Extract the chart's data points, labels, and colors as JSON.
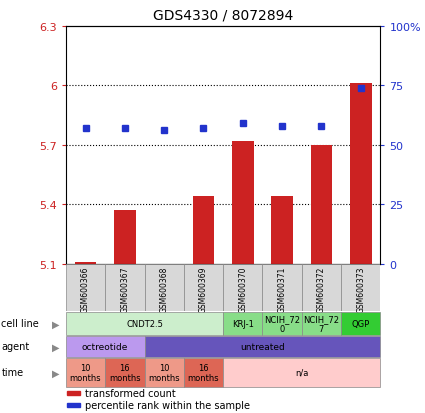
{
  "title": "GDS4330 / 8072894",
  "samples": [
    "GSM600366",
    "GSM600367",
    "GSM600368",
    "GSM600369",
    "GSM600370",
    "GSM600371",
    "GSM600372",
    "GSM600373"
  ],
  "bar_values": [
    5.11,
    5.37,
    5.05,
    5.44,
    5.72,
    5.44,
    5.7,
    6.01
  ],
  "bar_base": 5.1,
  "dot_values": [
    57,
    57,
    56,
    57,
    59,
    58,
    58,
    74
  ],
  "ylim_left": [
    5.1,
    6.3
  ],
  "ylim_right": [
    0,
    100
  ],
  "yticks_left": [
    5.1,
    5.4,
    5.7,
    6.0,
    6.3
  ],
  "ytick_labels_left": [
    "5.1",
    "5.4",
    "5.7",
    "6",
    "6.3"
  ],
  "yticks_right": [
    0,
    25,
    50,
    75,
    100
  ],
  "hlines": [
    5.4,
    5.7,
    6.0
  ],
  "bar_color": "#cc2222",
  "dot_color": "#2233cc",
  "bg_color": "#ffffff",
  "cell_line_groups": [
    {
      "label": "CNDT2.5",
      "start": 0,
      "end": 4,
      "color": "#cceecc"
    },
    {
      "label": "KRJ-1",
      "start": 4,
      "end": 5,
      "color": "#88dd88"
    },
    {
      "label": "NCIH_72\n0",
      "start": 5,
      "end": 6,
      "color": "#88dd88"
    },
    {
      "label": "NCIH_72\n7",
      "start": 6,
      "end": 7,
      "color": "#88dd88"
    },
    {
      "label": "QGP",
      "start": 7,
      "end": 8,
      "color": "#33cc33"
    }
  ],
  "agent_groups": [
    {
      "label": "octreotide",
      "start": 0,
      "end": 2,
      "color": "#bb99ee"
    },
    {
      "label": "untreated",
      "start": 2,
      "end": 8,
      "color": "#6655bb"
    }
  ],
  "time_groups": [
    {
      "label": "10\nmonths",
      "start": 0,
      "end": 1,
      "color": "#ee9988"
    },
    {
      "label": "16\nmonths",
      "start": 1,
      "end": 2,
      "color": "#dd6655"
    },
    {
      "label": "10\nmonths",
      "start": 2,
      "end": 3,
      "color": "#ee9988"
    },
    {
      "label": "16\nmonths",
      "start": 3,
      "end": 4,
      "color": "#dd6655"
    },
    {
      "label": "n/a",
      "start": 4,
      "end": 8,
      "color": "#ffcccc"
    }
  ],
  "legend_items": [
    {
      "label": "transformed count",
      "color": "#cc2222"
    },
    {
      "label": "percentile rank within the sample",
      "color": "#2233cc"
    }
  ]
}
